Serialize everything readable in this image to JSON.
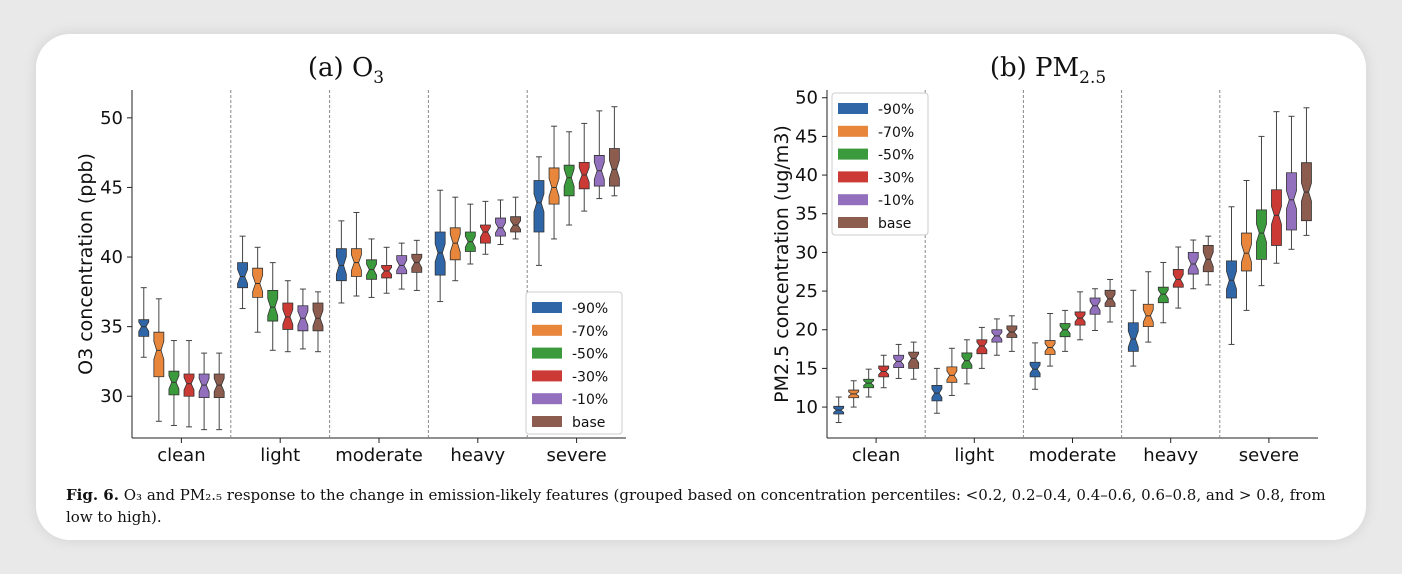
{
  "caption": {
    "label": "Fig. 6.",
    "text": "O₃ and PM₂.₅ response to the change in emission-likely features (grouped based on concentration percentiles: <0.2, 0.2–0.4, 0.4–0.6, 0.6–0.8, and > 0.8, from low to high)."
  },
  "colors": {
    "-90%": "#2f66a8",
    "-70%": "#e8873b",
    "-50%": "#3a9a3c",
    "-30%": "#cc3a35",
    "-10%": "#9270be",
    "base": "#8c5c4f"
  },
  "chart_data": [
    {
      "type": "box",
      "title": "(a) O",
      "title_sub": "3",
      "ylabel": "O3 concentration (ppb)",
      "ylim": [
        27,
        52
      ],
      "yticks": [
        30,
        35,
        40,
        45,
        50
      ],
      "legend_position": "bottom-right",
      "categories": [
        "clean",
        "light",
        "moderate",
        "heavy",
        "severe"
      ],
      "series_names": [
        "-90%",
        "-70%",
        "-50%",
        "-30%",
        "-10%",
        "base"
      ],
      "boxes": {
        "clean": [
          [
            32.8,
            34.3,
            35.0,
            35.5,
            37.8
          ],
          [
            28.2,
            31.4,
            33.3,
            34.6,
            37.0
          ],
          [
            27.9,
            30.1,
            31.0,
            31.8,
            34.0
          ],
          [
            27.8,
            30.0,
            30.9,
            31.6,
            34.0
          ],
          [
            27.6,
            29.9,
            30.8,
            31.6,
            33.1
          ],
          [
            27.6,
            29.9,
            30.8,
            31.6,
            33.1
          ]
        ],
        "light": [
          [
            36.3,
            37.8,
            38.6,
            39.6,
            41.5
          ],
          [
            34.6,
            37.1,
            38.1,
            39.2,
            40.7
          ],
          [
            33.3,
            35.4,
            36.4,
            37.6,
            39.6
          ],
          [
            33.2,
            34.8,
            35.7,
            36.7,
            38.3
          ],
          [
            33.4,
            34.7,
            35.6,
            36.5,
            37.7
          ],
          [
            33.2,
            34.7,
            35.6,
            36.7,
            37.5
          ]
        ],
        "moderate": [
          [
            36.7,
            38.3,
            39.4,
            40.6,
            42.6
          ],
          [
            37.2,
            38.6,
            39.6,
            40.6,
            43.2
          ],
          [
            37.1,
            38.4,
            39.1,
            39.8,
            41.3
          ],
          [
            37.4,
            38.5,
            39.0,
            39.4,
            40.7
          ],
          [
            37.7,
            38.8,
            39.4,
            40.1,
            41.0
          ],
          [
            37.6,
            38.9,
            39.6,
            40.2,
            41.2
          ]
        ],
        "heavy": [
          [
            36.8,
            38.7,
            40.3,
            41.8,
            44.8
          ],
          [
            38.3,
            39.8,
            41.0,
            42.1,
            44.3
          ],
          [
            39.5,
            40.4,
            41.1,
            41.8,
            43.8
          ],
          [
            40.2,
            41.0,
            41.8,
            42.3,
            44.0
          ],
          [
            40.9,
            41.5,
            42.1,
            42.8,
            44.1
          ],
          [
            41.3,
            41.8,
            42.3,
            42.9,
            44.3
          ]
        ],
        "severe": [
          [
            39.4,
            41.8,
            43.9,
            45.5,
            47.2
          ],
          [
            41.3,
            43.8,
            45.0,
            46.4,
            49.4
          ],
          [
            42.3,
            44.4,
            45.7,
            46.6,
            49.0
          ],
          [
            43.3,
            44.9,
            45.9,
            46.8,
            49.6
          ],
          [
            44.2,
            45.1,
            46.2,
            47.3,
            50.5
          ],
          [
            44.4,
            45.1,
            46.3,
            47.8,
            50.8
          ]
        ]
      }
    },
    {
      "type": "box",
      "title": "(b) PM",
      "title_sub": "2.5",
      "ylabel": "PM2.5 concentration (ug/m3)",
      "ylim": [
        6,
        51
      ],
      "yticks": [
        10,
        15,
        20,
        25,
        30,
        35,
        40,
        45,
        50
      ],
      "legend_position": "top-left",
      "categories": [
        "clean",
        "light",
        "moderate",
        "heavy",
        "severe"
      ],
      "series_names": [
        "-90%",
        "-70%",
        "-50%",
        "-30%",
        "-10%",
        "base"
      ],
      "boxes": {
        "clean": [
          [
            8.0,
            9.1,
            9.6,
            10.1,
            11.3
          ],
          [
            10.0,
            11.2,
            11.7,
            12.2,
            13.4
          ],
          [
            11.3,
            12.5,
            13.1,
            13.6,
            14.9
          ],
          [
            12.5,
            13.9,
            14.6,
            15.3,
            16.7
          ],
          [
            13.7,
            15.1,
            15.9,
            16.7,
            18.1
          ],
          [
            13.6,
            15.0,
            16.3,
            17.1,
            18.4
          ]
        ],
        "light": [
          [
            9.2,
            10.8,
            11.8,
            12.8,
            15.0
          ],
          [
            11.5,
            13.2,
            14.1,
            15.2,
            17.6
          ],
          [
            13.0,
            15.0,
            16.0,
            17.0,
            18.7
          ],
          [
            15.0,
            16.9,
            17.9,
            18.7,
            20.3
          ],
          [
            16.7,
            18.4,
            19.2,
            20.0,
            21.4
          ],
          [
            17.2,
            19.0,
            19.7,
            20.5,
            21.8
          ]
        ],
        "moderate": [
          [
            12.3,
            13.9,
            14.9,
            15.8,
            18.3
          ],
          [
            15.3,
            16.8,
            17.7,
            18.6,
            22.1
          ],
          [
            17.2,
            19.1,
            20.0,
            20.8,
            22.5
          ],
          [
            18.7,
            20.6,
            21.5,
            22.3,
            24.9
          ],
          [
            19.9,
            22.0,
            23.1,
            24.1,
            25.3
          ],
          [
            21.0,
            23.0,
            24.0,
            25.1,
            26.5
          ]
        ],
        "heavy": [
          [
            15.3,
            17.2,
            18.8,
            20.9,
            25.1
          ],
          [
            18.4,
            20.4,
            21.8,
            23.3,
            27.5
          ],
          [
            20.9,
            23.5,
            24.6,
            25.5,
            28.7
          ],
          [
            22.8,
            25.5,
            26.5,
            27.8,
            30.7
          ],
          [
            25.3,
            27.2,
            28.5,
            30.0,
            31.6
          ],
          [
            25.8,
            27.5,
            29.1,
            30.9,
            32.1
          ]
        ],
        "severe": [
          [
            18.1,
            24.1,
            26.4,
            28.9,
            35.9
          ],
          [
            22.5,
            27.6,
            29.9,
            32.5,
            39.3
          ],
          [
            25.7,
            29.1,
            32.5,
            35.5,
            45.0
          ],
          [
            28.6,
            30.9,
            34.8,
            38.1,
            48.2
          ],
          [
            30.4,
            32.9,
            36.8,
            40.3,
            47.6
          ],
          [
            32.2,
            34.1,
            37.8,
            41.6,
            48.7
          ]
        ]
      }
    }
  ]
}
